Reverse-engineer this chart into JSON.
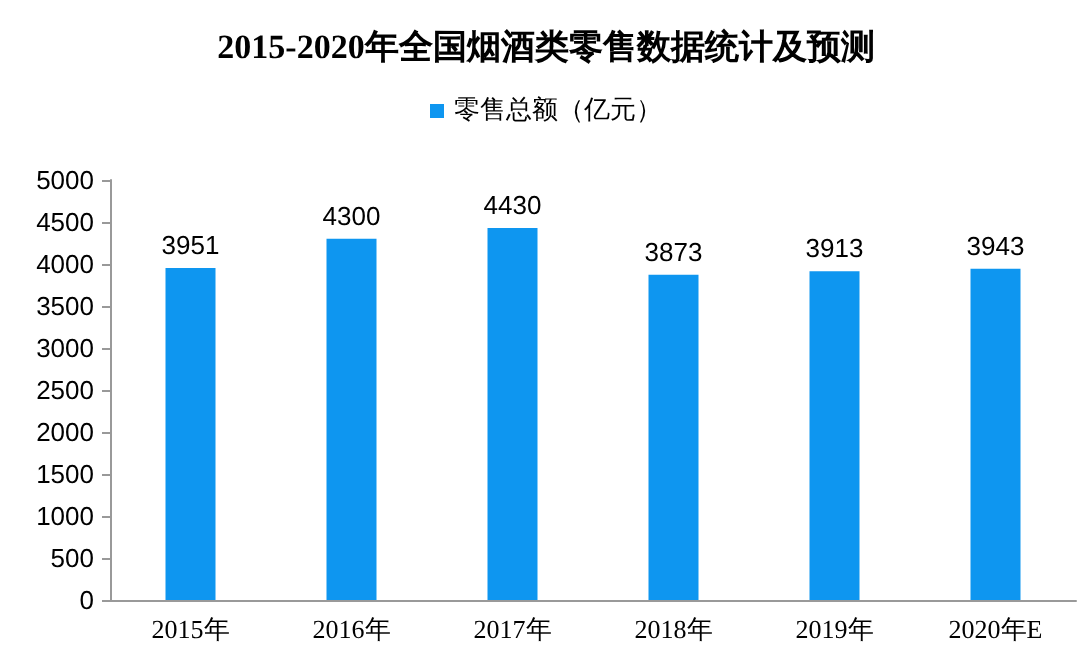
{
  "chart_data": {
    "type": "bar",
    "title": "2015-2020年全国烟酒类零售数据统计及预测",
    "categories": [
      "2015年",
      "2016年",
      "2017年",
      "2018年",
      "2019年",
      "2020年E"
    ],
    "series": [
      {
        "name": "零售总额（亿元）",
        "color": "#0e96f0",
        "values": [
          3951,
          4300,
          4430,
          3873,
          3913,
          3943
        ]
      }
    ],
    "ylim": [
      0,
      5000
    ],
    "yticks": [
      0,
      500,
      1000,
      1500,
      2000,
      2500,
      3000,
      3500,
      4000,
      4500,
      5000
    ],
    "grid": false,
    "legend": "top",
    "data_labels": true
  }
}
